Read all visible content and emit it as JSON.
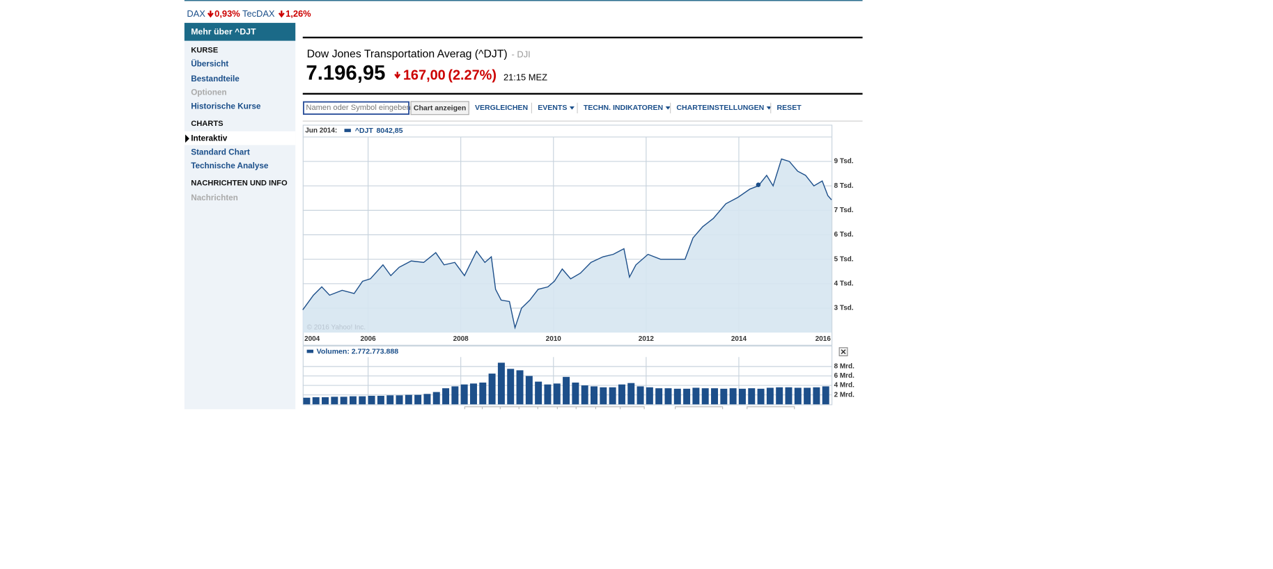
{
  "ticker_bar": [
    {
      "name": "DAX",
      "change": "0,93%"
    },
    {
      "name": "TecDAX",
      "change": "1,26%"
    }
  ],
  "sidebar": {
    "header": "Mehr über ^DJT",
    "sections": [
      {
        "title": "KURSE",
        "items": [
          "Übersicht",
          "Bestandteile",
          "Optionen",
          "Historische Kurse"
        ]
      },
      {
        "title": "CHARTS",
        "items": [
          "Interaktiv",
          "Standard Chart",
          "Technische Analyse"
        ]
      },
      {
        "title": "NACHRICHTEN UND INFO",
        "items": [
          "Nachrichten"
        ]
      }
    ]
  },
  "quote": {
    "name": "Dow Jones Transportation Averag (^DJT)",
    "exchange": "- DJI",
    "price": "7.196,95",
    "change": "167,00",
    "change_pct": "(2.27%)",
    "time": "21:15 MEZ"
  },
  "toolbar": {
    "input_placeholder": "Namen oder Symbol eingeben",
    "button": "Chart anzeigen",
    "links": [
      "VERGLEICHEN",
      "EVENTS",
      "TECHN. INDIKATOREN",
      "CHARTEINSTELLUNGEN",
      "RESET"
    ]
  },
  "chart_data": [
    {
      "type": "area",
      "color": "#1d4f8a",
      "fill": "#d6e6f1",
      "grid": true,
      "legend": "^DJT",
      "highlight": {
        "date_label": "Jun 2014:",
        "x": 2014.42,
        "value": 8042.85,
        "value_label": "8042,85"
      },
      "annotation": "© 2016 Yahoo! Inc.",
      "x": [
        2004.59,
        2004.82,
        2005.0,
        2005.17,
        2005.44,
        2005.7,
        2005.88,
        2006.05,
        2006.32,
        2006.49,
        2006.67,
        2006.93,
        2007.2,
        2007.46,
        2007.64,
        2007.87,
        2008.08,
        2008.34,
        2008.52,
        2008.66,
        2008.75,
        2008.87,
        2009.05,
        2009.17,
        2009.31,
        2009.49,
        2009.67,
        2009.88,
        2010.02,
        2010.19,
        2010.37,
        2010.58,
        2010.81,
        2011.07,
        2011.29,
        2011.52,
        2011.64,
        2011.78,
        2012.04,
        2012.31,
        2012.57,
        2012.84,
        2013.01,
        2013.22,
        2013.45,
        2013.72,
        2013.98,
        2014.24,
        2014.42,
        2014.6,
        2014.74,
        2014.92,
        2015.09,
        2015.27,
        2015.44,
        2015.62,
        2015.8,
        2015.92,
        2016.0
      ],
      "values": [
        2930,
        3530,
        3870,
        3530,
        3730,
        3600,
        4100,
        4200,
        4770,
        4330,
        4670,
        4930,
        4870,
        5270,
        4770,
        4870,
        4330,
        5330,
        4870,
        5100,
        3770,
        3330,
        3270,
        2200,
        3000,
        3330,
        3770,
        3870,
        4100,
        4600,
        4200,
        4430,
        4870,
        5100,
        5200,
        5430,
        4270,
        4770,
        5200,
        5000,
        5000,
        5000,
        5870,
        6330,
        6670,
        7270,
        7530,
        7870,
        8000,
        8430,
        8000,
        9100,
        9000,
        8600,
        8430,
        8000,
        8200,
        7600,
        7430
      ],
      "xlim": [
        2004.59,
        2016.0
      ],
      "xticks": [
        2004,
        2006,
        2008,
        2010,
        2012,
        2014,
        2016
      ],
      "ylim": [
        2000,
        10000
      ],
      "yticks": [
        {
          "value": 3000,
          "label": "3 Tsd."
        },
        {
          "value": 4000,
          "label": "4 Tsd."
        },
        {
          "value": 5000,
          "label": "5 Tsd."
        },
        {
          "value": 6000,
          "label": "6 Tsd."
        },
        {
          "value": 7000,
          "label": "7 Tsd."
        },
        {
          "value": 8000,
          "label": "8 Tsd."
        },
        {
          "value": 9000,
          "label": "9 Tsd."
        }
      ]
    },
    {
      "type": "bar",
      "color": "#1d4f8a",
      "grid": true,
      "legend": "Volumen: 2.772.773.888",
      "x": [
        2004.6,
        2004.8,
        2005.0,
        2005.2,
        2005.4,
        2005.6,
        2005.8,
        2006.0,
        2006.2,
        2006.4,
        2006.6,
        2006.8,
        2007.0,
        2007.2,
        2007.4,
        2007.6,
        2007.8,
        2008.0,
        2008.2,
        2008.4,
        2008.6,
        2008.8,
        2009.0,
        2009.2,
        2009.4,
        2009.6,
        2009.8,
        2010.0,
        2010.2,
        2010.4,
        2010.6,
        2010.8,
        2011.0,
        2011.2,
        2011.4,
        2011.6,
        2011.8,
        2012.0,
        2012.2,
        2012.4,
        2012.6,
        2012.8,
        2013.0,
        2013.2,
        2013.4,
        2013.6,
        2013.8,
        2014.0,
        2014.2,
        2014.4,
        2014.6,
        2014.8,
        2015.0,
        2015.2,
        2015.4,
        2015.6,
        2015.8
      ],
      "values": [
        1.4,
        1.5,
        1.5,
        1.6,
        1.6,
        1.7,
        1.7,
        1.8,
        1.8,
        1.9,
        1.9,
        2.0,
        2.0,
        2.2,
        2.6,
        3.4,
        3.8,
        4.2,
        4.4,
        4.6,
        6.5,
        8.8,
        7.5,
        7.2,
        6.0,
        4.8,
        4.2,
        4.4,
        5.8,
        4.6,
        4.0,
        3.8,
        3.6,
        3.6,
        4.2,
        4.5,
        3.8,
        3.6,
        3.4,
        3.4,
        3.3,
        3.3,
        3.5,
        3.4,
        3.4,
        3.3,
        3.4,
        3.3,
        3.4,
        3.3,
        3.5,
        3.6,
        3.6,
        3.5,
        3.5,
        3.6,
        3.8
      ],
      "xlim": [
        2004.59,
        2016.0
      ],
      "ylim": [
        0,
        10
      ],
      "yticks": [
        {
          "value": 2,
          "label": "2 Mrd."
        },
        {
          "value": 4,
          "label": "4 Mrd."
        },
        {
          "value": 6,
          "label": "6 Mrd."
        },
        {
          "value": 8,
          "label": "8 Mrd."
        }
      ]
    }
  ]
}
